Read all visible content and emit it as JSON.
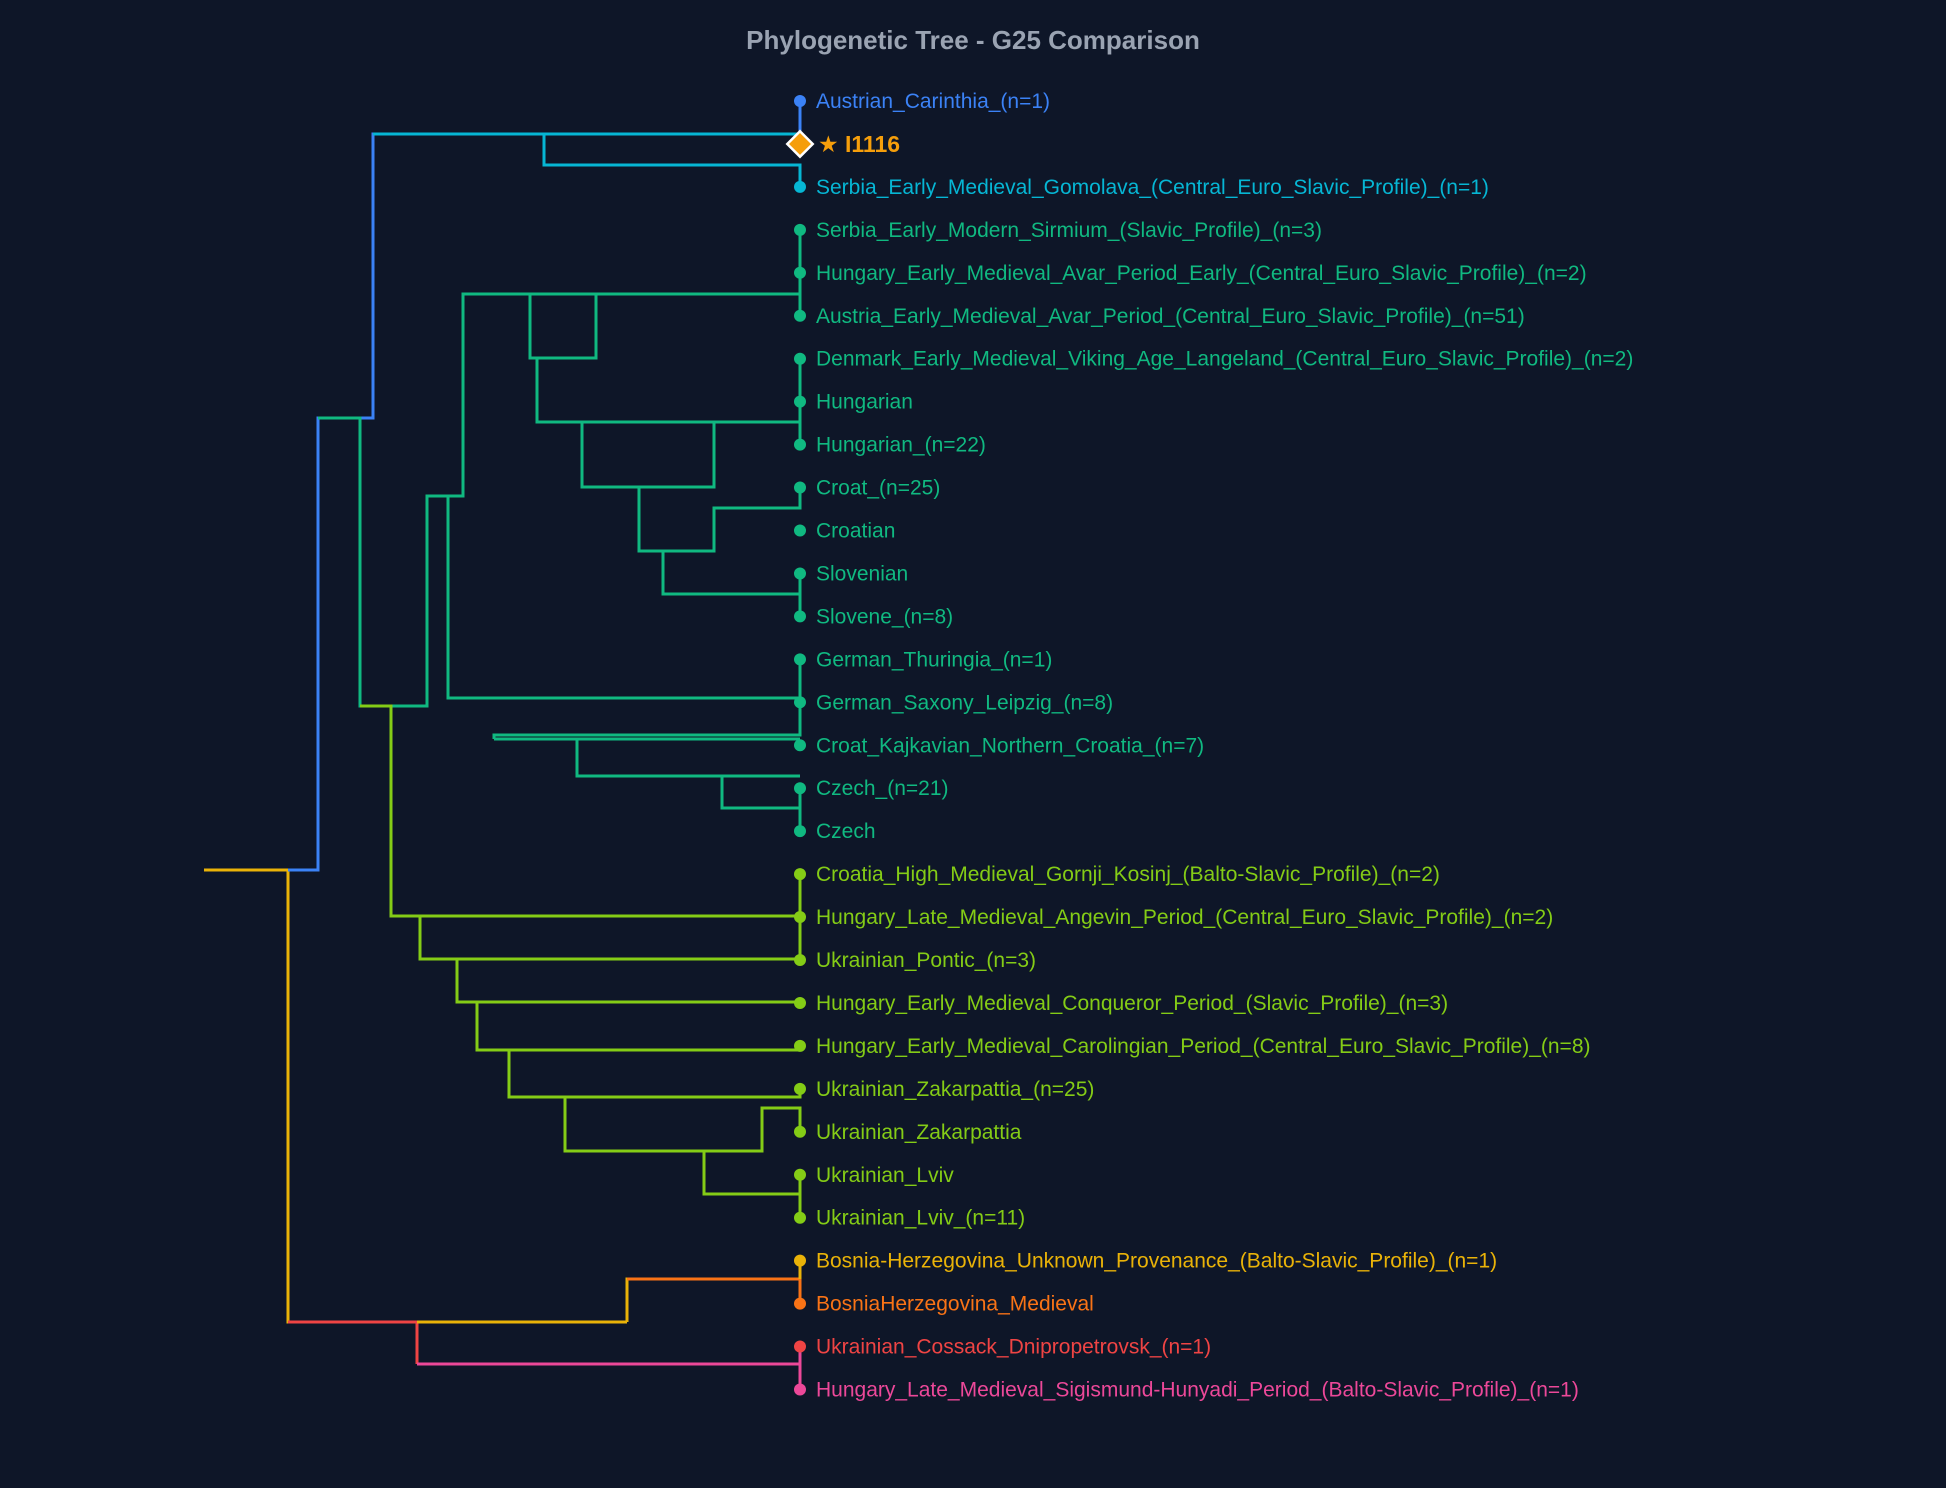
{
  "title": "Phylogenetic Tree - G25 Comparison",
  "colors": {
    "background": "#0e1628",
    "title": "#9aa3b2",
    "blue": "#3b82f6",
    "cyan": "#06b6d4",
    "green": "#10b981",
    "lime": "#84cc16",
    "amber": "#eab308",
    "orange": "#f97316",
    "red": "#ef4444",
    "pink": "#ec4899",
    "query": "#f59e0b"
  },
  "query": {
    "star": "★",
    "label": "I1116"
  },
  "leaves": [
    {
      "label": "Austrian_Carinthia_(n=1)",
      "color": "#3b82f6"
    },
    {
      "label": "I1116",
      "color": "#f59e0b",
      "is_query": true
    },
    {
      "label": "Serbia_Early_Medieval_Gomolava_(Central_Euro_Slavic_Profile)_(n=1)",
      "color": "#06b6d4"
    },
    {
      "label": "Serbia_Early_Modern_Sirmium_(Slavic_Profile)_(n=3)",
      "color": "#10b981"
    },
    {
      "label": "Hungary_Early_Medieval_Avar_Period_Early_(Central_Euro_Slavic_Profile)_(n=2)",
      "color": "#10b981"
    },
    {
      "label": "Austria_Early_Medieval_Avar_Period_(Central_Euro_Slavic_Profile)_(n=51)",
      "color": "#10b981"
    },
    {
      "label": "Denmark_Early_Medieval_Viking_Age_Langeland_(Central_Euro_Slavic_Profile)_(n=2)",
      "color": "#10b981"
    },
    {
      "label": "Hungarian",
      "color": "#10b981"
    },
    {
      "label": "Hungarian_(n=22)",
      "color": "#10b981"
    },
    {
      "label": "Croat_(n=25)",
      "color": "#10b981"
    },
    {
      "label": "Croatian",
      "color": "#10b981"
    },
    {
      "label": "Slovenian",
      "color": "#10b981"
    },
    {
      "label": "Slovene_(n=8)",
      "color": "#10b981"
    },
    {
      "label": "German_Thuringia_(n=1)",
      "color": "#10b981"
    },
    {
      "label": "German_Saxony_Leipzig_(n=8)",
      "color": "#10b981"
    },
    {
      "label": "Croat_Kajkavian_Northern_Croatia_(n=7)",
      "color": "#10b981"
    },
    {
      "label": "Czech_(n=21)",
      "color": "#10b981"
    },
    {
      "label": "Czech",
      "color": "#10b981"
    },
    {
      "label": "Croatia_High_Medieval_Gornji_Kosinj_(Balto-Slavic_Profile)_(n=2)",
      "color": "#84cc16"
    },
    {
      "label": "Hungary_Late_Medieval_Angevin_Period_(Central_Euro_Slavic_Profile)_(n=2)",
      "color": "#84cc16"
    },
    {
      "label": "Ukrainian_Pontic_(n=3)",
      "color": "#84cc16"
    },
    {
      "label": "Hungary_Early_Medieval_Conqueror_Period_(Slavic_Profile)_(n=3)",
      "color": "#84cc16"
    },
    {
      "label": "Hungary_Early_Medieval_Carolingian_Period_(Central_Euro_Slavic_Profile)_(n=8)",
      "color": "#84cc16"
    },
    {
      "label": "Ukrainian_Zakarpattia_(n=25)",
      "color": "#84cc16"
    },
    {
      "label": "Ukrainian_Zakarpattia",
      "color": "#84cc16"
    },
    {
      "label": "Ukrainian_Lviv",
      "color": "#84cc16"
    },
    {
      "label": "Ukrainian_Lviv_(n=11)",
      "color": "#84cc16"
    },
    {
      "label": "Bosnia-Herzegovina_Unknown_Provenance_(Balto-Slavic_Profile)_(n=1)",
      "color": "#eab308"
    },
    {
      "label": "BosniaHerzegovina_Medieval",
      "color": "#f97316"
    },
    {
      "label": "Ukrainian_Cossack_Dnipropetrovsk_(n=1)",
      "color": "#ef4444"
    },
    {
      "label": "Hungary_Late_Medieval_Sigismund-Hunyadi_Period_(Balto-Slavic_Profile)_(n=1)",
      "color": "#ec4899"
    }
  ]
}
